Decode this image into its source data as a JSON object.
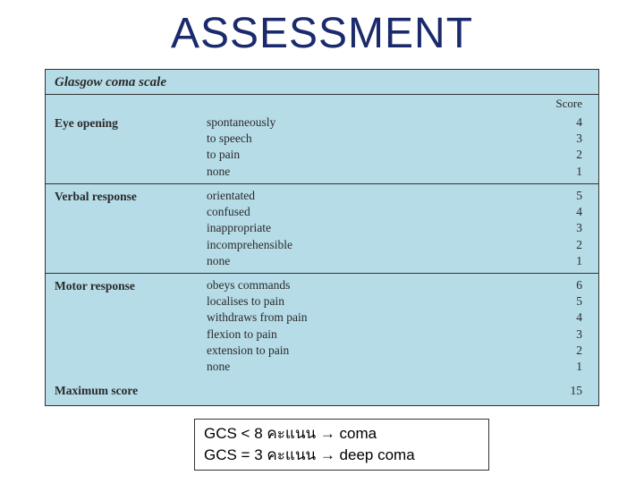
{
  "title": "ASSESSMENT",
  "table": {
    "header": "Glasgow coma scale",
    "score_label": "Score",
    "background_color": "#b6dce8",
    "border_color": "#333333",
    "sections": [
      {
        "label": "Eye opening",
        "responses": [
          {
            "text": "spontaneously",
            "score": 4
          },
          {
            "text": "to speech",
            "score": 3
          },
          {
            "text": "to pain",
            "score": 2
          },
          {
            "text": "none",
            "score": 1
          }
        ]
      },
      {
        "label": "Verbal response",
        "responses": [
          {
            "text": "orientated",
            "score": 5
          },
          {
            "text": "confused",
            "score": 4
          },
          {
            "text": "inappropriate",
            "score": 3
          },
          {
            "text": "incomprehensible",
            "score": 2
          },
          {
            "text": "none",
            "score": 1
          }
        ]
      },
      {
        "label": "Motor response",
        "responses": [
          {
            "text": "obeys commands",
            "score": 6
          },
          {
            "text": "localises to pain",
            "score": 5
          },
          {
            "text": "withdraws from pain",
            "score": 4
          },
          {
            "text": "flexion to pain",
            "score": 3
          },
          {
            "text": "extension to pain",
            "score": 2
          },
          {
            "text": "none",
            "score": 1
          }
        ]
      }
    ],
    "max_label": "Maximum score",
    "max_score": 15
  },
  "notes": {
    "line1": "GCS <  8 คะแนน → coma",
    "line2": "GCS = 3 คะแนน → deep coma"
  }
}
